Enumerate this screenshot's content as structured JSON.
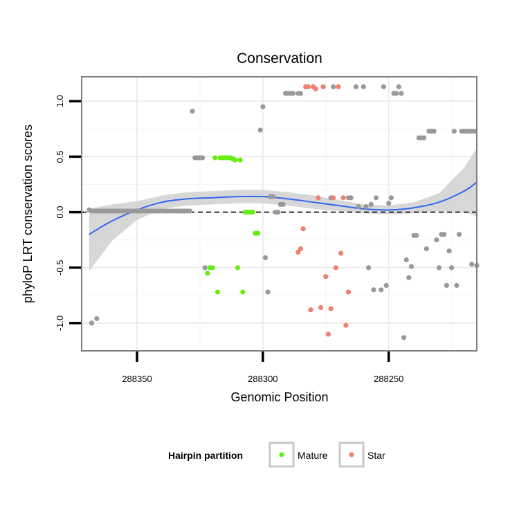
{
  "chart_data": {
    "type": "scatter",
    "title": "Conservation",
    "xlabel": "Genomic Position",
    "ylabel": "phyloP LRT conservation scores",
    "x_reversed": true,
    "xlim": [
      288372,
      288215
    ],
    "ylim": [
      -1.25,
      1.22
    ],
    "x_ticks": [
      288350,
      288300,
      288250
    ],
    "y_ticks": [
      -1.0,
      -0.5,
      0.0,
      0.5,
      1.0
    ],
    "x_tick_labels": [
      "288350",
      "288300",
      "288250"
    ],
    "y_tick_labels": [
      "-1.0",
      "-0.5",
      "0.0",
      "0.5",
      "1.0"
    ],
    "reference_line": {
      "y": 0,
      "style": "dashed"
    },
    "grid": true,
    "legend": {
      "title": "Hairpin partition",
      "position": "bottom",
      "entries": [
        {
          "label": "Mature",
          "color": "#66ee11"
        },
        {
          "label": "Star",
          "color": "#f08070"
        }
      ]
    },
    "colors": {
      "other": "#999999",
      "Mature": "#66ee11",
      "Star": "#f08070",
      "smooth": "#3366ee",
      "band": "#d3d3d3"
    },
    "series": [
      {
        "name": "",
        "color": "#999999",
        "points": [
          [
            288369,
            0.02
          ],
          [
            288368,
            0.01
          ],
          [
            288367,
            0.01
          ],
          [
            288366,
            0.01
          ],
          [
            288365,
            0.01
          ],
          [
            288364,
            0.01
          ],
          [
            288363,
            0.01
          ],
          [
            288362,
            0.01
          ],
          [
            288361,
            0.01
          ],
          [
            288360,
            0.01
          ],
          [
            288359,
            0.01
          ],
          [
            288358,
            0.01
          ],
          [
            288357,
            0.01
          ],
          [
            288356,
            0.01
          ],
          [
            288355,
            0.01
          ],
          [
            288354,
            0.01
          ],
          [
            288353,
            0.01
          ],
          [
            288352,
            0.01
          ],
          [
            288351,
            0.01
          ],
          [
            288350,
            0.01
          ],
          [
            288349,
            0.01
          ],
          [
            288348,
            0.01
          ],
          [
            288347,
            0.01
          ],
          [
            288346,
            0.01
          ],
          [
            288345,
            0.01
          ],
          [
            288344,
            0.01
          ],
          [
            288343,
            0.01
          ],
          [
            288342,
            0.01
          ],
          [
            288341,
            0.01
          ],
          [
            288340,
            0.01
          ],
          [
            288339,
            0.01
          ],
          [
            288338,
            0.01
          ],
          [
            288337,
            0.01
          ],
          [
            288336,
            0.01
          ],
          [
            288335,
            0.01
          ],
          [
            288334,
            0.01
          ],
          [
            288333,
            0.01
          ],
          [
            288332,
            0.01
          ],
          [
            288331,
            0.01
          ],
          [
            288330,
            0.01
          ],
          [
            288329,
            0.01
          ],
          [
            288368,
            -1.0
          ],
          [
            288366,
            -0.96
          ],
          [
            288328,
            0.91
          ],
          [
            288327,
            0.49
          ],
          [
            288326,
            0.49
          ],
          [
            288325,
            0.49
          ],
          [
            288324,
            0.49
          ],
          [
            288323,
            -0.5
          ],
          [
            288301,
            0.74
          ],
          [
            288300,
            0.95
          ],
          [
            288299,
            -0.41
          ],
          [
            288298,
            -0.72
          ],
          [
            288297,
            0.14
          ],
          [
            288296,
            0.14
          ],
          [
            288295,
            0.0
          ],
          [
            288294,
            0.0
          ],
          [
            288293,
            0.07
          ],
          [
            288292,
            0.07
          ],
          [
            288291,
            1.07
          ],
          [
            288290,
            1.07
          ],
          [
            288289,
            1.07
          ],
          [
            288288,
            1.07
          ],
          [
            288286,
            1.07
          ],
          [
            288285,
            1.07
          ],
          [
            288272,
            1.13
          ],
          [
            288273,
            0.13
          ],
          [
            288266,
            0.13
          ],
          [
            288265,
            0.13
          ],
          [
            288263,
            1.13
          ],
          [
            288262,
            0.05
          ],
          [
            288260,
            1.13
          ],
          [
            288259,
            0.05
          ],
          [
            288258,
            -0.5
          ],
          [
            288257,
            0.07
          ],
          [
            288256,
            -0.7
          ],
          [
            288255,
            0.13
          ],
          [
            288253,
            -0.7
          ],
          [
            288252,
            1.13
          ],
          [
            288251,
            -0.66
          ],
          [
            288250,
            0.08
          ],
          [
            288249,
            0.13
          ],
          [
            288248,
            1.07
          ],
          [
            288247,
            1.07
          ],
          [
            288246,
            1.13
          ],
          [
            288245,
            1.07
          ],
          [
            288244,
            -1.13
          ],
          [
            288243,
            -0.43
          ],
          [
            288242,
            -0.59
          ],
          [
            288241,
            -0.49
          ],
          [
            288240,
            -0.21
          ],
          [
            288239,
            -0.21
          ],
          [
            288238,
            0.67
          ],
          [
            288237,
            0.67
          ],
          [
            288236,
            0.67
          ],
          [
            288235,
            -0.33
          ],
          [
            288234,
            0.73
          ],
          [
            288233,
            0.73
          ],
          [
            288232,
            0.73
          ],
          [
            288231,
            -0.25
          ],
          [
            288230,
            -0.5
          ],
          [
            288229,
            -0.2
          ],
          [
            288228,
            -0.2
          ],
          [
            288227,
            -0.66
          ],
          [
            288226,
            -0.35
          ],
          [
            288225,
            -0.5
          ],
          [
            288224,
            0.73
          ],
          [
            288223,
            -0.66
          ],
          [
            288222,
            -0.2
          ],
          [
            288221,
            0.73
          ],
          [
            288220,
            0.73
          ],
          [
            288219,
            0.73
          ],
          [
            288218,
            0.73
          ],
          [
            288217,
            0.73
          ],
          [
            288216,
            0.73
          ],
          [
            288215,
            -0.48
          ],
          [
            288217,
            -0.47
          ]
        ]
      },
      {
        "name": "Mature",
        "color": "#66ee11",
        "points": [
          [
            288322,
            -0.55
          ],
          [
            288321,
            -0.5
          ],
          [
            288320,
            -0.5
          ],
          [
            288319,
            0.49
          ],
          [
            288318,
            -0.72
          ],
          [
            288317,
            0.49
          ],
          [
            288316,
            0.49
          ],
          [
            288315,
            0.49
          ],
          [
            288314,
            0.49
          ],
          [
            288313,
            0.49
          ],
          [
            288312,
            0.48
          ],
          [
            288311,
            0.47
          ],
          [
            288310,
            -0.5
          ],
          [
            288309,
            0.47
          ],
          [
            288308,
            -0.72
          ],
          [
            288307,
            0.0
          ],
          [
            288306,
            0.0
          ],
          [
            288305,
            0.0
          ],
          [
            288304,
            0.0
          ],
          [
            288303,
            -0.19
          ],
          [
            288302,
            -0.19
          ]
        ]
      },
      {
        "name": "Star",
        "color": "#f08070",
        "points": [
          [
            288286,
            -0.36
          ],
          [
            288285,
            -0.33
          ],
          [
            288284,
            -0.15
          ],
          [
            288283,
            1.13
          ],
          [
            288282,
            1.13
          ],
          [
            288281,
            -0.88
          ],
          [
            288280,
            1.13
          ],
          [
            288279,
            1.11
          ],
          [
            288278,
            0.13
          ],
          [
            288277,
            -0.86
          ],
          [
            288276,
            1.13
          ],
          [
            288275,
            -0.58
          ],
          [
            288274,
            -1.1
          ],
          [
            288273,
            -0.87
          ],
          [
            288272,
            0.13
          ],
          [
            288271,
            -0.5
          ],
          [
            288270,
            1.13
          ],
          [
            288269,
            -0.37
          ],
          [
            288268,
            0.13
          ],
          [
            288267,
            -1.02
          ],
          [
            288266,
            -0.72
          ]
        ]
      }
    ],
    "smooth_curve": {
      "x": [
        288369,
        288360,
        288350,
        288340,
        288330,
        288320,
        288310,
        288300,
        288290,
        288280,
        288270,
        288260,
        288250,
        288240,
        288230,
        288220,
        288215
      ],
      "y": [
        -0.2,
        -0.08,
        0.02,
        0.09,
        0.12,
        0.13,
        0.14,
        0.14,
        0.12,
        0.09,
        0.06,
        0.03,
        0.02,
        0.04,
        0.09,
        0.19,
        0.27
      ],
      "upper": [
        0.03,
        0.07,
        0.1,
        0.15,
        0.18,
        0.19,
        0.2,
        0.2,
        0.18,
        0.15,
        0.11,
        0.07,
        0.06,
        0.09,
        0.17,
        0.4,
        0.58
      ],
      "lower": [
        -0.53,
        -0.26,
        -0.07,
        0.03,
        0.06,
        0.07,
        0.08,
        0.08,
        0.06,
        0.03,
        0.01,
        -0.01,
        -0.02,
        -0.01,
        0.01,
        0.0,
        -0.04
      ]
    }
  }
}
